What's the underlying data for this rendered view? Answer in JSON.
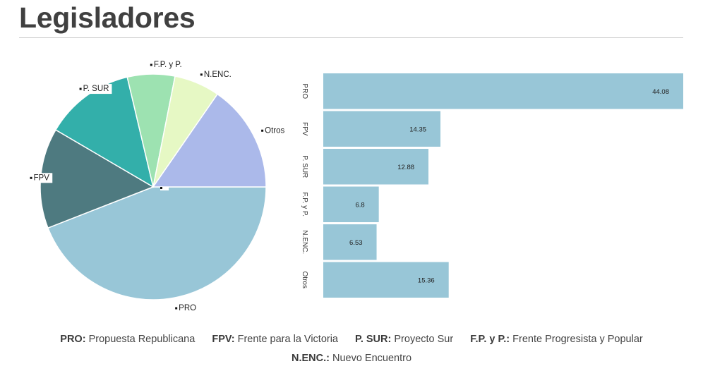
{
  "page": {
    "title": "Legisladores"
  },
  "colors": {
    "PRO": "#98c6d7",
    "FPV": "#4e7a80",
    "P. SUR": "#33afaa",
    "F.P. y P.": "#9de2b1",
    "N.ENC.": "#e6f8c4",
    "Otros": "#abb9ea",
    "bar": "#98c6d7"
  },
  "chart_data": [
    {
      "type": "pie",
      "categories": [
        "PRO",
        "FPV",
        "P. SUR",
        "F.P. y P.",
        "N.ENC.",
        "Otros"
      ],
      "values": [
        44.08,
        14.35,
        12.88,
        6.8,
        6.53,
        15.36
      ],
      "start_angle_deg": 90,
      "direction": "clockwise"
    },
    {
      "type": "bar",
      "orientation": "horizontal",
      "categories": [
        "PRO",
        "FPV",
        "P. SUR",
        "F.P. y P.",
        "N.ENC.",
        "Otros"
      ],
      "values": [
        44.08,
        14.35,
        12.88,
        6.8,
        6.53,
        15.36
      ],
      "data_labels": [
        "44.08",
        "14.35",
        "12.88",
        "6.8",
        "6.53",
        "15.36"
      ],
      "xlim": [
        0,
        44.08
      ]
    }
  ],
  "legend": [
    {
      "abbr": "PRO:",
      "full": "Propuesta Republicana"
    },
    {
      "abbr": "FPV:",
      "full": "Frente para la Victoria"
    },
    {
      "abbr": "P. SUR:",
      "full": "Proyecto Sur"
    },
    {
      "abbr": "F.P. y P.:",
      "full": "Frente Progresista y Popular"
    },
    {
      "abbr": "N.ENC.:",
      "full": "Nuevo Encuentro"
    }
  ]
}
